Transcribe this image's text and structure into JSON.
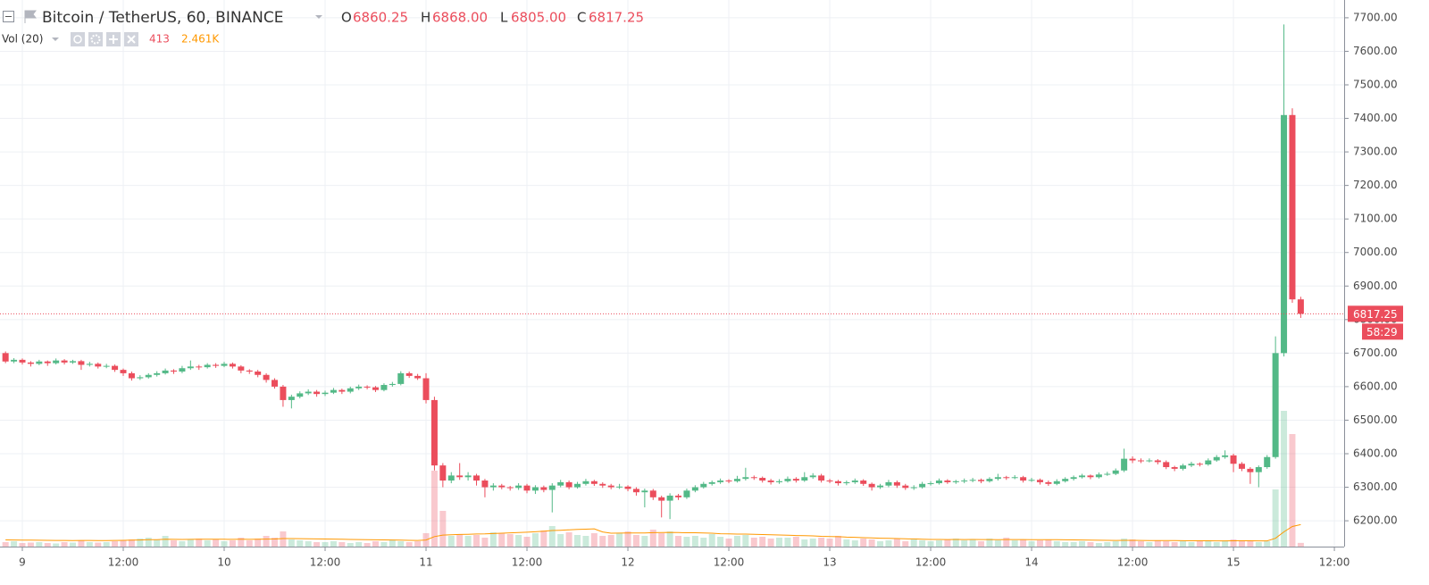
{
  "chart_data": {
    "type": "candlestick",
    "symbol": "Bitcoin / TetherUS, 60, BINANCE",
    "ohlc_keys": [
      "O",
      "H",
      "L",
      "C"
    ],
    "ohlc_labels": [
      "6860.25",
      "6868.00",
      "6805.00",
      "6817.25"
    ],
    "countdown": "58:29",
    "up_color": "#53b987",
    "down_color": "#eb4d5c",
    "grid": true,
    "categories": [
      null,
      null,
      "9",
      null,
      null,
      null,
      null,
      null,
      null,
      null,
      null,
      null,
      null,
      null,
      "12:00",
      null,
      null,
      null,
      null,
      null,
      null,
      null,
      null,
      null,
      null,
      null,
      "10",
      null,
      null,
      null,
      null,
      null,
      null,
      null,
      null,
      null,
      null,
      null,
      "12:00",
      null,
      null,
      null,
      null,
      null,
      null,
      null,
      null,
      null,
      null,
      null,
      "11",
      null,
      null,
      null,
      null,
      null,
      null,
      null,
      null,
      null,
      null,
      null,
      "12:00",
      null,
      null,
      null,
      null,
      null,
      null,
      null,
      null,
      null,
      null,
      null,
      "12",
      null,
      null,
      null,
      null,
      null,
      null,
      null,
      null,
      null,
      null,
      null,
      "12:00",
      null,
      null,
      null,
      null,
      null,
      null,
      null,
      null,
      null,
      null,
      null,
      "13",
      null,
      null,
      null,
      null,
      null,
      null,
      null,
      null,
      null,
      null,
      null,
      "12:00",
      null,
      null,
      null,
      null,
      null,
      null,
      null,
      null,
      null,
      null,
      null,
      "14",
      null,
      null,
      null,
      null,
      null,
      null,
      null,
      null,
      null,
      null,
      null,
      "12:00",
      null,
      null,
      null,
      null,
      null,
      null,
      null,
      null,
      null,
      null,
      null,
      "15",
      null,
      null,
      null,
      null,
      null,
      null,
      null,
      null,
      null,
      null,
      null,
      "12:00"
    ],
    "ohlc": [
      [
        6700,
        6705,
        6670,
        6675
      ],
      [
        6675,
        6685,
        6670,
        6680
      ],
      [
        6680,
        6684,
        6666,
        6672
      ],
      [
        6672,
        6676,
        6660,
        6668
      ],
      [
        6668,
        6680,
        6664,
        6675
      ],
      [
        6675,
        6678,
        6662,
        6670
      ],
      [
        6670,
        6684,
        6666,
        6678
      ],
      [
        6678,
        6682,
        6666,
        6672
      ],
      [
        6672,
        6680,
        6668,
        6676
      ],
      [
        6676,
        6680,
        6650,
        6665
      ],
      [
        6665,
        6674,
        6660,
        6668
      ],
      [
        6668,
        6672,
        6654,
        6660
      ],
      [
        6660,
        6668,
        6655,
        6662
      ],
      [
        6662,
        6666,
        6644,
        6650
      ],
      [
        6650,
        6654,
        6632,
        6640
      ],
      [
        6640,
        6645,
        6618,
        6625
      ],
      [
        6625,
        6634,
        6620,
        6628
      ],
      [
        6628,
        6640,
        6624,
        6635
      ],
      [
        6635,
        6646,
        6630,
        6640
      ],
      [
        6640,
        6654,
        6636,
        6648
      ],
      [
        6648,
        6652,
        6638,
        6645
      ],
      [
        6645,
        6662,
        6640,
        6655
      ],
      [
        6655,
        6678,
        6650,
        6660
      ],
      [
        6660,
        6665,
        6650,
        6658
      ],
      [
        6658,
        6670,
        6654,
        6665
      ],
      [
        6665,
        6670,
        6656,
        6662
      ],
      [
        6662,
        6674,
        6658,
        6668
      ],
      [
        6668,
        6672,
        6654,
        6660
      ],
      [
        6660,
        6664,
        6640,
        6648
      ],
      [
        6648,
        6652,
        6638,
        6645
      ],
      [
        6645,
        6650,
        6628,
        6635
      ],
      [
        6635,
        6640,
        6612,
        6620
      ],
      [
        6620,
        6625,
        6594,
        6600
      ],
      [
        6600,
        6605,
        6540,
        6560
      ],
      [
        6560,
        6576,
        6535,
        6570
      ],
      [
        6570,
        6586,
        6565,
        6580
      ],
      [
        6580,
        6592,
        6575,
        6585
      ],
      [
        6585,
        6590,
        6570,
        6578
      ],
      [
        6578,
        6588,
        6572,
        6582
      ],
      [
        6582,
        6596,
        6578,
        6590
      ],
      [
        6590,
        6594,
        6578,
        6585
      ],
      [
        6585,
        6600,
        6580,
        6595
      ],
      [
        6595,
        6606,
        6590,
        6600
      ],
      [
        6600,
        6604,
        6592,
        6598
      ],
      [
        6598,
        6602,
        6584,
        6590
      ],
      [
        6590,
        6610,
        6586,
        6605
      ],
      [
        6605,
        6614,
        6600,
        6608
      ],
      [
        6608,
        6646,
        6604,
        6640
      ],
      [
        6640,
        6645,
        6626,
        6632
      ],
      [
        6632,
        6638,
        6620,
        6625
      ],
      [
        6625,
        6640,
        6550,
        6560
      ],
      [
        6560,
        6570,
        6350,
        6365
      ],
      [
        6365,
        6372,
        6300,
        6320
      ],
      [
        6320,
        6345,
        6312,
        6335
      ],
      [
        6335,
        6372,
        6322,
        6330
      ],
      [
        6330,
        6345,
        6320,
        6335
      ],
      [
        6335,
        6340,
        6305,
        6320
      ],
      [
        6320,
        6325,
        6270,
        6300
      ],
      [
        6300,
        6312,
        6290,
        6305
      ],
      [
        6305,
        6310,
        6294,
        6300
      ],
      [
        6300,
        6304,
        6290,
        6298
      ],
      [
        6298,
        6312,
        6292,
        6305
      ],
      [
        6305,
        6310,
        6282,
        6290
      ],
      [
        6290,
        6306,
        6280,
        6300
      ],
      [
        6300,
        6305,
        6285,
        6292
      ],
      [
        6292,
        6312,
        6225,
        6305
      ],
      [
        6305,
        6322,
        6300,
        6315
      ],
      [
        6315,
        6320,
        6294,
        6300
      ],
      [
        6300,
        6316,
        6296,
        6310
      ],
      [
        6310,
        6325,
        6305,
        6318
      ],
      [
        6318,
        6322,
        6304,
        6310
      ],
      [
        6310,
        6315,
        6298,
        6305
      ],
      [
        6305,
        6310,
        6294,
        6300
      ],
      [
        6300,
        6310,
        6295,
        6302
      ],
      [
        6302,
        6306,
        6288,
        6295
      ],
      [
        6295,
        6300,
        6275,
        6285
      ],
      [
        6285,
        6296,
        6240,
        6290
      ],
      [
        6290,
        6295,
        6262,
        6270
      ],
      [
        6270,
        6275,
        6210,
        6260
      ],
      [
        6260,
        6282,
        6205,
        6275
      ],
      [
        6275,
        6280,
        6262,
        6270
      ],
      [
        6270,
        6296,
        6265,
        6290
      ],
      [
        6290,
        6306,
        6285,
        6300
      ],
      [
        6300,
        6316,
        6296,
        6310
      ],
      [
        6310,
        6320,
        6305,
        6315
      ],
      [
        6315,
        6326,
        6310,
        6320
      ],
      [
        6320,
        6324,
        6312,
        6318
      ],
      [
        6318,
        6334,
        6314,
        6325
      ],
      [
        6325,
        6358,
        6320,
        6330
      ],
      [
        6330,
        6335,
        6322,
        6328
      ],
      [
        6328,
        6332,
        6314,
        6320
      ],
      [
        6320,
        6325,
        6308,
        6315
      ],
      [
        6315,
        6324,
        6310,
        6318
      ],
      [
        6318,
        6332,
        6314,
        6325
      ],
      [
        6325,
        6330,
        6314,
        6320
      ],
      [
        6320,
        6345,
        6316,
        6330
      ],
      [
        6330,
        6342,
        6325,
        6335
      ],
      [
        6335,
        6340,
        6314,
        6320
      ],
      [
        6320,
        6325,
        6312,
        6318
      ],
      [
        6318,
        6322,
        6305,
        6312
      ],
      [
        6312,
        6320,
        6306,
        6315
      ],
      [
        6315,
        6326,
        6310,
        6320
      ],
      [
        6320,
        6324,
        6304,
        6310
      ],
      [
        6310,
        6314,
        6290,
        6300
      ],
      [
        6300,
        6310,
        6295,
        6305
      ],
      [
        6305,
        6322,
        6300,
        6315
      ],
      [
        6315,
        6320,
        6298,
        6305
      ],
      [
        6305,
        6310,
        6292,
        6298
      ],
      [
        6298,
        6306,
        6292,
        6300
      ],
      [
        6300,
        6316,
        6296,
        6310
      ],
      [
        6310,
        6318,
        6305,
        6312
      ],
      [
        6312,
        6326,
        6308,
        6320
      ],
      [
        6320,
        6324,
        6310,
        6315
      ],
      [
        6315,
        6322,
        6310,
        6318
      ],
      [
        6318,
        6326,
        6312,
        6320
      ],
      [
        6320,
        6328,
        6315,
        6322
      ],
      [
        6322,
        6326,
        6312,
        6318
      ],
      [
        6318,
        6330,
        6314,
        6325
      ],
      [
        6325,
        6340,
        6320,
        6330
      ],
      [
        6330,
        6334,
        6322,
        6328
      ],
      [
        6328,
        6336,
        6324,
        6330
      ],
      [
        6330,
        6334,
        6314,
        6320
      ],
      [
        6320,
        6328,
        6316,
        6322
      ],
      [
        6322,
        6326,
        6308,
        6315
      ],
      [
        6315,
        6320,
        6304,
        6310
      ],
      [
        6310,
        6324,
        6306,
        6318
      ],
      [
        6318,
        6330,
        6314,
        6325
      ],
      [
        6325,
        6335,
        6320,
        6330
      ],
      [
        6330,
        6340,
        6326,
        6335
      ],
      [
        6335,
        6338,
        6324,
        6330
      ],
      [
        6330,
        6344,
        6326,
        6338
      ],
      [
        6338,
        6346,
        6334,
        6340
      ],
      [
        6340,
        6356,
        6336,
        6350
      ],
      [
        6350,
        6415,
        6345,
        6385
      ],
      [
        6385,
        6392,
        6372,
        6380
      ],
      [
        6380,
        6386,
        6372,
        6378
      ],
      [
        6378,
        6386,
        6374,
        6380
      ],
      [
        6380,
        6384,
        6368,
        6375
      ],
      [
        6375,
        6380,
        6354,
        6360
      ],
      [
        6360,
        6364,
        6348,
        6355
      ],
      [
        6355,
        6370,
        6350,
        6365
      ],
      [
        6365,
        6376,
        6360,
        6370
      ],
      [
        6370,
        6374,
        6362,
        6368
      ],
      [
        6368,
        6386,
        6364,
        6380
      ],
      [
        6380,
        6396,
        6376,
        6390
      ],
      [
        6390,
        6410,
        6385,
        6395
      ],
      [
        6395,
        6400,
        6345,
        6370
      ],
      [
        6370,
        6375,
        6348,
        6355
      ],
      [
        6355,
        6360,
        6310,
        6345
      ],
      [
        6345,
        6365,
        6300,
        6360
      ],
      [
        6360,
        6396,
        6355,
        6390
      ],
      [
        6390,
        6750,
        6385,
        6700
      ],
      [
        6700,
        7680,
        6690,
        7410
      ],
      [
        7410,
        7430,
        6850,
        6860.25
      ],
      [
        6860.25,
        6868,
        6805,
        6817.25
      ],
      null,
      null,
      null,
      null
    ],
    "ylim": [
      6123,
      7753
    ],
    "yticks": [
      {
        "value": 6200,
        "label": "6200.00"
      },
      {
        "value": 6300,
        "label": "6300.00"
      },
      {
        "value": 6400,
        "label": "6400.00"
      },
      {
        "value": 6500,
        "label": "6500.00"
      },
      {
        "value": 6600,
        "label": "6600.00"
      },
      {
        "value": 6700,
        "label": "6700.00"
      },
      {
        "value": 6800,
        "label": "6800.00"
      },
      {
        "value": 6900,
        "label": "6900.00"
      },
      {
        "value": 7000,
        "label": "7000.00"
      },
      {
        "value": 7100,
        "label": "7100.00"
      },
      {
        "value": 7200,
        "label": "7200.00"
      },
      {
        "value": 7300,
        "label": "7300.00"
      },
      {
        "value": 7400,
        "label": "7400.00"
      },
      {
        "value": 7500,
        "label": "7500.00"
      },
      {
        "value": 7600,
        "label": "7600.00"
      },
      {
        "value": 7700,
        "label": "7700.00"
      }
    ],
    "volume": {
      "label": "Vol (20)",
      "ylim": [
        0,
        61200
      ],
      "ma_color": "#ff9800",
      "values": [
        500,
        600,
        400,
        450,
        500,
        400,
        350,
        500,
        450,
        700,
        500,
        450,
        500,
        600,
        700,
        800,
        900,
        1000,
        800,
        1200,
        700,
        600,
        800,
        900,
        700,
        800,
        600,
        700,
        1000,
        700,
        900,
        1200,
        1000,
        1700,
        800,
        700,
        600,
        500,
        500,
        600,
        500,
        400,
        500,
        400,
        600,
        500,
        700,
        600,
        500,
        600,
        1500,
        8500,
        4000,
        1200,
        1400,
        1200,
        1300,
        1000,
        1600,
        1500,
        1400,
        1300,
        1100,
        1500,
        1800,
        2300,
        1400,
        1600,
        1300,
        1200,
        1500,
        1200,
        1300,
        1500,
        1700,
        1300,
        1200,
        1900,
        1500,
        1700,
        1200,
        1100,
        1200,
        1000,
        1400,
        1100,
        900,
        1200,
        1300,
        1000,
        1100,
        900,
        1000,
        1000,
        1100,
        800,
        900,
        1000,
        900,
        1200,
        800,
        700,
        900,
        800,
        600,
        700,
        900,
        600,
        800,
        700,
        600,
        700,
        800,
        900,
        700,
        800,
        600,
        900,
        700,
        1000,
        700,
        800,
        600,
        700,
        800,
        600,
        500,
        500,
        600,
        500,
        400,
        500,
        600,
        900,
        800,
        600,
        500,
        700,
        600,
        500,
        600,
        500,
        600,
        700,
        500,
        600,
        800,
        700,
        600,
        500,
        600,
        6400,
        15200,
        12600,
        413,
        null,
        null,
        null,
        null
      ],
      "ma_values": [
        750,
        740,
        730,
        720,
        710,
        700,
        690,
        690,
        680,
        690,
        690,
        680,
        680,
        690,
        700,
        720,
        740,
        770,
        780,
        820,
        810,
        800,
        810,
        820,
        820,
        830,
        820,
        810,
        820,
        810,
        820,
        840,
        850,
        900,
        900,
        890,
        880,
        860,
        850,
        840,
        820,
        800,
        790,
        770,
        760,
        750,
        740,
        720,
        700,
        690,
        740,
        1120,
        1290,
        1320,
        1360,
        1380,
        1410,
        1420,
        1460,
        1500,
        1540,
        1580,
        1610,
        1660,
        1720,
        1800,
        1830,
        1880,
        1920,
        1950,
        1990,
        1640,
        1500,
        1510,
        1530,
        1530,
        1530,
        1560,
        1570,
        1590,
        1570,
        1550,
        1550,
        1520,
        1500,
        1440,
        1420,
        1400,
        1400,
        1370,
        1350,
        1320,
        1300,
        1270,
        1240,
        1220,
        1200,
        1150,
        1130,
        1110,
        1060,
        1040,
        1000,
        980,
        940,
        920,
        900,
        870,
        860,
        830,
        800,
        800,
        790,
        800,
        790,
        800,
        790,
        790,
        780,
        790,
        790,
        790,
        780,
        770,
        780,
        770,
        760,
        750,
        740,
        720,
        710,
        700,
        690,
        700,
        700,
        690,
        680,
        680,
        680,
        670,
        660,
        650,
        650,
        650,
        640,
        640,
        650,
        650,
        650,
        640,
        640,
        930,
        1650,
        2250,
        2461,
        null,
        null,
        null,
        null
      ],
      "ma_value_label": "2.461K"
    }
  }
}
